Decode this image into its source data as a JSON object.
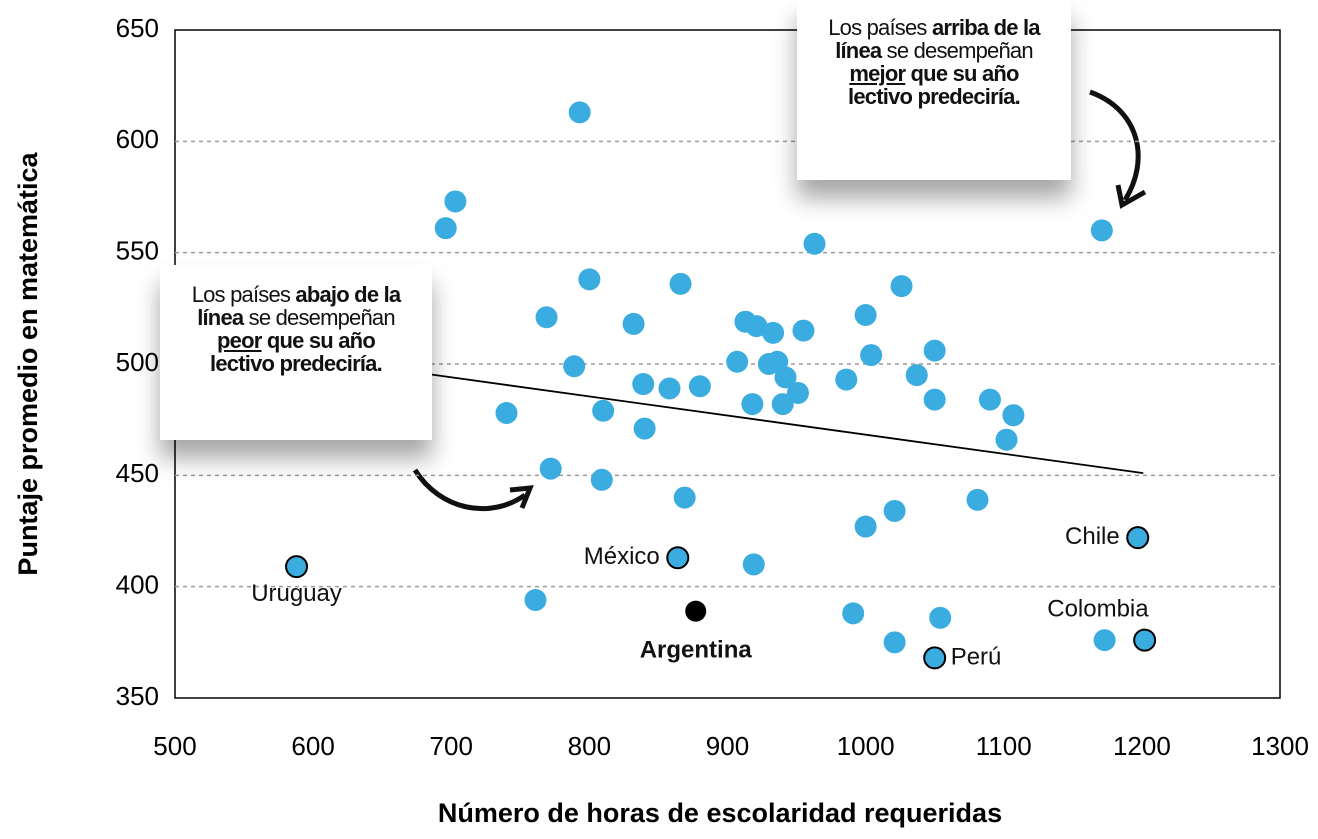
{
  "chart_data": {
    "type": "scatter",
    "xlabel": "Número de horas de escolaridad requeridas",
    "ylabel": "Puntaje promedio en matemática",
    "xlim": [
      500,
      1300
    ],
    "xticks": [
      500,
      600,
      700,
      800,
      900,
      1000,
      1100,
      1200,
      1300
    ],
    "ylim": [
      350,
      650
    ],
    "yticks": [
      350,
      400,
      450,
      500,
      550,
      600,
      650
    ],
    "grid": true,
    "color": "#3aace0",
    "x": [
      793,
      703,
      696,
      963,
      1171,
      800,
      866,
      1026,
      769,
      832,
      913,
      921,
      1000,
      955,
      933,
      789,
      907,
      930,
      936,
      942,
      1004,
      1050,
      839,
      858,
      880,
      986,
      1037,
      740,
      810,
      918,
      940,
      951,
      1050,
      1090,
      1107,
      1102,
      840,
      772,
      809,
      869,
      1081,
      1000,
      1021,
      919,
      761,
      991,
      1054,
      1021,
      1173
    ],
    "y": [
      613,
      573,
      561,
      554,
      560,
      538,
      536,
      535,
      521,
      518,
      519,
      517,
      522,
      515,
      514,
      499,
      501,
      500,
      501,
      494,
      504,
      506,
      491,
      489,
      490,
      493,
      495,
      478,
      479,
      482,
      482,
      487,
      484,
      484,
      477,
      466,
      471,
      453,
      448,
      440,
      439,
      427,
      434,
      410,
      394,
      388,
      386,
      375,
      376
    ],
    "labeled_points": [
      {
        "label": "Uruguay",
        "x": 588,
        "y": 409,
        "color": "#3aace0"
      },
      {
        "label": "México",
        "x": 864,
        "y": 413,
        "color": "#3aace0"
      },
      {
        "label": "Argentina",
        "x": 877,
        "y": 389,
        "color": "#000000"
      },
      {
        "label": "Chile",
        "x": 1197,
        "y": 422,
        "color": "#3aace0"
      },
      {
        "label": "Colombia",
        "x": 1202,
        "y": 376,
        "color": "#3aace0"
      },
      {
        "label": "Perú",
        "x": 1050,
        "y": 368,
        "color": "#3aace0"
      }
    ],
    "trendline": {
      "x": [
        677,
        1201
      ],
      "y": [
        496,
        451
      ]
    },
    "annotations": [
      [
        {
          "text": "Los países "
        },
        {
          "text": "abajo de la línea",
          "bold": true
        },
        {
          "text": " se desempeñan "
        },
        {
          "text": "peor",
          "bold": true,
          "underline": true
        },
        {
          "text": " que su año lectivo predeciría.",
          "bold": true
        }
      ],
      [
        {
          "text": "Los países "
        },
        {
          "text": "arriba de la línea",
          "bold": true
        },
        {
          "text": " se desempeñan "
        },
        {
          "text": "mejor",
          "bold": true,
          "underline": true
        },
        {
          "text": " que su año lectivo predeciría.",
          "bold": true
        }
      ]
    ]
  }
}
